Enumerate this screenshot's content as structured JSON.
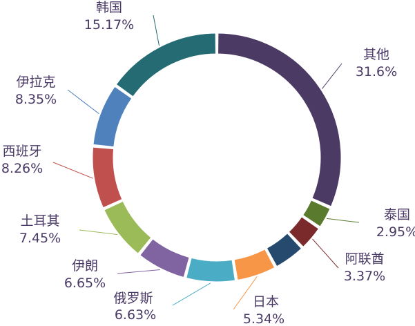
{
  "chart_data": {
    "type": "pie",
    "variant": "donut",
    "legend": "none",
    "slices": [
      {
        "name": "其他",
        "value": 31.6,
        "label": "31.6%",
        "color": "#4b3a63"
      },
      {
        "name": "泰国",
        "value": 2.95,
        "label": "2.95%",
        "color": "#5a7a2e"
      },
      {
        "name": "阿联酋",
        "value": 3.37,
        "label": "3.37%",
        "color": "#7a2a2a"
      },
      {
        "name": "",
        "value": 4.23,
        "label": "",
        "color": "#254a6e"
      },
      {
        "name": "日本",
        "value": 5.34,
        "label": "5.34%",
        "color": "#f79646"
      },
      {
        "name": "俄罗斯",
        "value": 6.63,
        "label": "6.63%",
        "color": "#4bacc6"
      },
      {
        "name": "伊朗",
        "value": 6.65,
        "label": "6.65%",
        "color": "#8064a2"
      },
      {
        "name": "土耳其",
        "value": 7.45,
        "label": "7.45%",
        "color": "#9bbb59"
      },
      {
        "name": "西班牙",
        "value": 8.26,
        "label": "8.26%",
        "color": "#c0504d"
      },
      {
        "name": "伊拉克",
        "value": 8.35,
        "label": "8.35%",
        "color": "#4f81bd"
      },
      {
        "name": "韩国",
        "value": 15.17,
        "label": "15.17%",
        "color": "#256b73"
      }
    ]
  }
}
